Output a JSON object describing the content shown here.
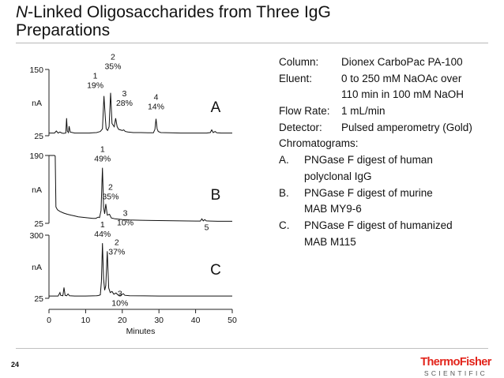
{
  "slide": {
    "title_italic": "N",
    "title_rest": "-Linked Oligosaccharides from Three IgG Preparations",
    "page_number": "24"
  },
  "info": {
    "column_label": "Column:",
    "column_value": "Dionex CarboPac PA-100",
    "eluent_label": "Eluent:",
    "eluent_value_1": "0 to 250 mM NaOAc over",
    "eluent_value_2": "110 min in 100 mM NaOH",
    "flow_label": "Flow Rate:",
    "flow_value": "1 mL/min",
    "detector_label": "Detector:",
    "detector_value": "Pulsed amperometry (Gold)",
    "chromatograms_label": "Chromatograms:",
    "items": [
      {
        "letter": "A.",
        "line1": "PNGase F digest of human",
        "line2": "polyclonal IgG"
      },
      {
        "letter": "B.",
        "line1": "PNGase F digest of murine",
        "line2": "MAB MY9-6"
      },
      {
        "letter": "C.",
        "line1": "PNGase F digest of humanized",
        "line2": "MAB M115"
      }
    ]
  },
  "logo": {
    "main": "ThermoFisher",
    "sub": "SCIENTIFIC"
  },
  "chart_data": {
    "type": "line",
    "xlabel": "Minutes",
    "xlim": [
      0,
      50
    ],
    "xticks": [
      0,
      10,
      20,
      30,
      40,
      50
    ],
    "grid": false,
    "panels": [
      {
        "label": "A",
        "ylabel": "nA",
        "ylim": [
          25,
          150
        ],
        "yticks": [
          25,
          150
        ],
        "baseline": 30,
        "trace": [
          [
            0,
            30
          ],
          [
            1.5,
            30
          ],
          [
            2,
            34
          ],
          [
            2.5,
            30
          ],
          [
            3,
            32
          ],
          [
            3.5,
            30
          ],
          [
            4,
            29.5
          ],
          [
            4.6,
            30
          ],
          [
            4.8,
            58
          ],
          [
            5.0,
            34
          ],
          [
            5.3,
            31
          ],
          [
            5.5,
            43
          ],
          [
            5.8,
            32
          ],
          [
            7,
            30
          ],
          [
            9,
            30
          ],
          [
            10,
            30
          ],
          [
            11,
            30
          ],
          [
            12,
            30.5
          ],
          [
            13,
            31
          ],
          [
            13.5,
            32
          ],
          [
            14,
            33
          ],
          [
            14.6,
            38
          ],
          [
            15.0,
            100
          ],
          [
            15.4,
            55
          ],
          [
            15.6,
            38
          ],
          [
            16.0,
            35
          ],
          [
            16.4,
            42
          ],
          [
            16.8,
            106
          ],
          [
            17.2,
            48
          ],
          [
            17.5,
            45
          ],
          [
            17.8,
            42
          ],
          [
            18.2,
            58
          ],
          [
            18.6,
            42
          ],
          [
            19.0,
            37
          ],
          [
            19.5,
            36
          ],
          [
            20,
            35
          ],
          [
            20.4,
            36
          ],
          [
            20.8,
            33
          ],
          [
            21.5,
            32
          ],
          [
            23,
            31
          ],
          [
            25,
            31
          ],
          [
            27,
            30.5
          ],
          [
            28.5,
            30.5
          ],
          [
            28.9,
            37
          ],
          [
            29.2,
            57
          ],
          [
            29.5,
            38
          ],
          [
            29.8,
            33
          ],
          [
            30.5,
            31
          ],
          [
            33,
            30.5
          ],
          [
            36,
            30
          ],
          [
            40,
            30
          ],
          [
            43,
            30
          ],
          [
            44,
            31
          ],
          [
            44.4,
            36
          ],
          [
            44.8,
            31
          ],
          [
            45.3,
            33
          ],
          [
            45.8,
            30.5
          ],
          [
            47,
            30
          ],
          [
            50,
            30
          ]
        ],
        "peaks": [
          {
            "number": "1",
            "percent": "19%",
            "time": 15.0
          },
          {
            "number": "2",
            "percent": "35%",
            "time": 16.8
          },
          {
            "number": "3",
            "percent": "28%",
            "time": 18.2
          },
          {
            "number": "4",
            "percent": "14%",
            "time": 29.2
          }
        ]
      },
      {
        "label": "B",
        "ylabel": "nA",
        "ylim": [
          25,
          190
        ],
        "yticks": [
          25,
          190
        ],
        "baseline": 30,
        "trace": [
          [
            0,
            190
          ],
          [
            0.5,
            190
          ],
          [
            1,
            190
          ],
          [
            1.5,
            190
          ],
          [
            1.7,
            188
          ],
          [
            1.9,
            65
          ],
          [
            2.3,
            58
          ],
          [
            3,
            54
          ],
          [
            4,
            50
          ],
          [
            5,
            47
          ],
          [
            6,
            45
          ],
          [
            7,
            43
          ],
          [
            8,
            41
          ],
          [
            9,
            40
          ],
          [
            10,
            39
          ],
          [
            11,
            38
          ],
          [
            12,
            37
          ],
          [
            12.8,
            37
          ],
          [
            13.2,
            39
          ],
          [
            13.5,
            40
          ],
          [
            13.8,
            39
          ],
          [
            14.2,
            56
          ],
          [
            14.6,
            160
          ],
          [
            14.9,
            65
          ],
          [
            15.2,
            48
          ],
          [
            15.5,
            72
          ],
          [
            15.9,
            45
          ],
          [
            16.5,
            47
          ],
          [
            17,
            38
          ],
          [
            17.5,
            37
          ],
          [
            18,
            36
          ],
          [
            19,
            35
          ],
          [
            20,
            34
          ],
          [
            22,
            33
          ],
          [
            25,
            32.5
          ],
          [
            28,
            32
          ],
          [
            32,
            31.5
          ],
          [
            36,
            31
          ],
          [
            40,
            30.5
          ],
          [
            41.3,
            30.5
          ],
          [
            41.7,
            36
          ],
          [
            42.1,
            31
          ],
          [
            42.5,
            34
          ],
          [
            42.9,
            31
          ],
          [
            44,
            30.5
          ],
          [
            46,
            30
          ],
          [
            50,
            30
          ]
        ],
        "peaks": [
          {
            "number": "1",
            "percent": "49%",
            "time": 14.6
          },
          {
            "number": "2",
            "percent": "35%",
            "time": 15.5
          },
          {
            "number": "3",
            "percent": "10%",
            "time": 16.5
          },
          {
            "number": "5",
            "percent": "",
            "time": 41.7
          }
        ]
      },
      {
        "label": "C",
        "ylabel": "nA",
        "ylim": [
          25,
          300
        ],
        "yticks": [
          25,
          300
        ],
        "baseline": 35,
        "trace": [
          [
            0,
            35
          ],
          [
            2.5,
            35
          ],
          [
            3,
            50
          ],
          [
            3.2,
            38
          ],
          [
            3.8,
            36
          ],
          [
            4.1,
            72
          ],
          [
            4.4,
            38
          ],
          [
            4.8,
            36
          ],
          [
            5.2,
            44
          ],
          [
            5.6,
            36
          ],
          [
            7,
            35
          ],
          [
            10,
            35
          ],
          [
            12,
            35.5
          ],
          [
            13,
            36
          ],
          [
            13.5,
            37
          ],
          [
            14,
            40
          ],
          [
            14.3,
            100
          ],
          [
            14.6,
            265
          ],
          [
            14.9,
            110
          ],
          [
            15.2,
            60
          ],
          [
            15.5,
            80
          ],
          [
            15.9,
            230
          ],
          [
            16.3,
            70
          ],
          [
            16.7,
            50
          ],
          [
            17.2,
            55
          ],
          [
            17.7,
            43
          ],
          [
            18.3,
            48
          ],
          [
            18.8,
            40
          ],
          [
            19.5,
            38
          ],
          [
            20.3,
            45
          ],
          [
            20.7,
            38
          ],
          [
            22,
            36
          ],
          [
            26,
            35.5
          ],
          [
            30,
            35
          ],
          [
            35,
            35
          ],
          [
            40,
            35
          ],
          [
            45,
            35
          ],
          [
            50,
            35
          ]
        ],
        "peaks": [
          {
            "number": "1",
            "percent": "44%",
            "time": 14.6
          },
          {
            "number": "2",
            "percent": "37%",
            "time": 15.9
          },
          {
            "number": "3",
            "percent": "10%",
            "time": 17.2
          }
        ]
      }
    ]
  }
}
